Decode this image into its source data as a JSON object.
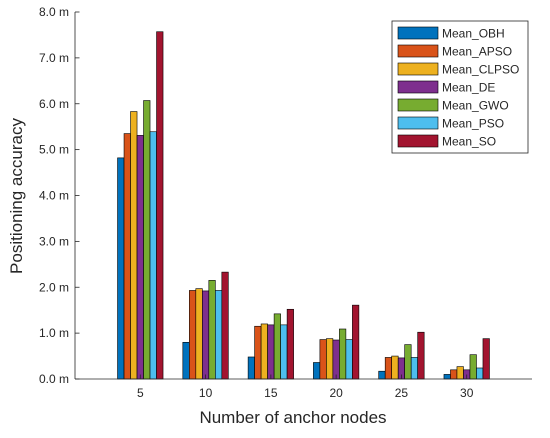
{
  "chart_data": {
    "type": "bar",
    "xlabel": "Number of anchor nodes",
    "ylabel": "Positioning accuracy",
    "categories": [
      "5",
      "10",
      "15",
      "20",
      "25",
      "30"
    ],
    "ylim": [
      0,
      8
    ],
    "yticks": [
      0,
      1,
      2,
      3,
      4,
      5,
      6,
      7,
      8
    ],
    "ytick_labels": [
      "0.0 m",
      "1.0 m",
      "2.0 m",
      "3.0 m",
      "4.0 m",
      "5.0 m",
      "6.0 m",
      "7.0 m",
      "8.0 m"
    ],
    "grid": false,
    "legend_position": "top-right",
    "series": [
      {
        "name": "Mean_OBH",
        "color": "#0072BD",
        "values": [
          4.82,
          0.8,
          0.48,
          0.36,
          0.17,
          0.1
        ]
      },
      {
        "name": "Mean_APSO",
        "color": "#D95319",
        "values": [
          5.35,
          1.93,
          1.15,
          0.86,
          0.47,
          0.2
        ]
      },
      {
        "name": "Mean_CLPSO",
        "color": "#EDB120",
        "values": [
          5.83,
          1.97,
          1.2,
          0.88,
          0.5,
          0.27
        ]
      },
      {
        "name": "Mean_DE",
        "color": "#7E2F8E",
        "values": [
          5.31,
          1.92,
          1.18,
          0.85,
          0.46,
          0.2
        ]
      },
      {
        "name": "Mean_GWO",
        "color": "#77AC30",
        "values": [
          6.07,
          2.15,
          1.42,
          1.09,
          0.75,
          0.53
        ]
      },
      {
        "name": "Mean_PSO",
        "color": "#4DBEEE",
        "values": [
          5.39,
          1.93,
          1.18,
          0.86,
          0.47,
          0.24
        ]
      },
      {
        "name": "Mean_SO",
        "color": "#A2142F",
        "values": [
          7.57,
          2.33,
          1.52,
          1.61,
          1.02,
          0.88
        ]
      }
    ]
  }
}
